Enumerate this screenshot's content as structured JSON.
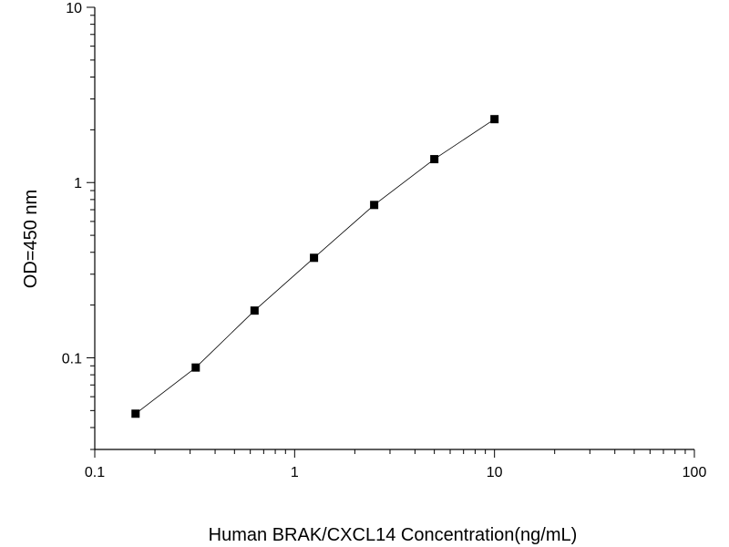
{
  "chart_data": {
    "type": "scatter",
    "title": "",
    "xlabel": "Human BRAK/CXCL14 Concentration(ng/mL)",
    "ylabel": "OD=450 nm",
    "xscale": "log",
    "yscale": "log",
    "xlim": [
      0.1,
      100
    ],
    "ylim": [
      0.03,
      10
    ],
    "x_ticks": [
      {
        "value": 0.1,
        "label": "0.1"
      },
      {
        "value": 1,
        "label": "1"
      },
      {
        "value": 10,
        "label": "10"
      },
      {
        "value": 100,
        "label": "100"
      }
    ],
    "y_ticks": [
      {
        "value": 0.1,
        "label": "0.1"
      },
      {
        "value": 1,
        "label": "1"
      },
      {
        "value": 10,
        "label": "10"
      }
    ],
    "grid": false,
    "legend": "none",
    "marker": "square",
    "line": "smooth fit through points",
    "colors": {
      "marker": "#000000",
      "line": "#000000",
      "axis": "#000000"
    },
    "series": [
      {
        "x": [
          0.16,
          0.32,
          0.63,
          1.25,
          2.5,
          5,
          10
        ],
        "y": [
          0.048,
          0.088,
          0.186,
          0.372,
          0.745,
          1.36,
          2.3
        ]
      }
    ]
  }
}
